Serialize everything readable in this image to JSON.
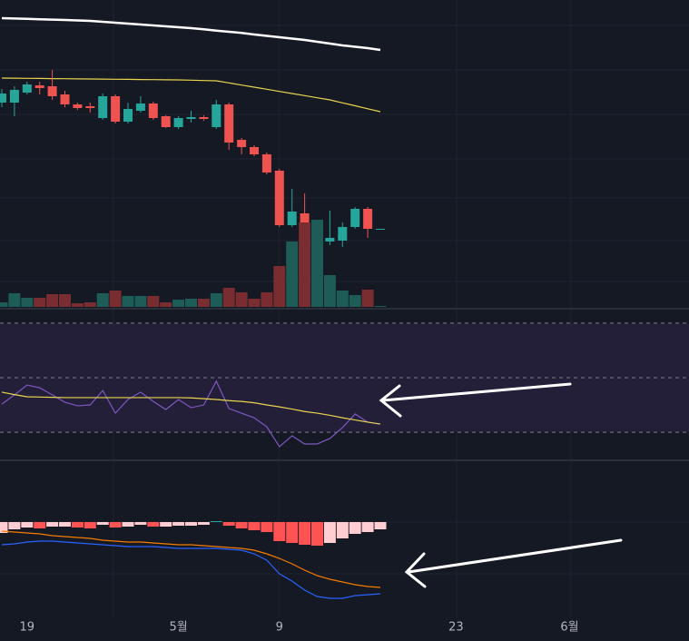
{
  "chart_data": [
    {
      "type": "candlestick",
      "open": [
        227,
        227,
        238,
        246,
        245,
        236,
        225,
        223,
        210,
        234,
        206,
        218,
        226,
        212,
        200,
        209,
        211,
        200,
        225,
        186,
        178,
        170,
        152,
        92,
        105,
        74,
        74,
        75,
        90,
        110,
        88
      ],
      "close": [
        237,
        241,
        247,
        243,
        234,
        225,
        221,
        221,
        234,
        206,
        220,
        226,
        210,
        200,
        210,
        211,
        209,
        225,
        183,
        178,
        170,
        150,
        92,
        107,
        75,
        78,
        78,
        90,
        110,
        88,
        88
      ],
      "high": [
        242,
        245,
        250,
        250,
        263,
        240,
        227,
        227,
        237,
        236,
        227,
        234,
        228,
        213,
        212,
        218,
        213,
        230,
        227,
        188,
        180,
        172,
        154,
        132,
        127,
        97,
        108,
        95,
        112,
        112,
        88
      ],
      "low": [
        222,
        212,
        236,
        236,
        230,
        222,
        219,
        216,
        208,
        204,
        204,
        216,
        208,
        199,
        198,
        205,
        207,
        198,
        175,
        170,
        168,
        148,
        90,
        90,
        55,
        68,
        70,
        68,
        88,
        78,
        88
      ],
      "up_color": "#26a69a",
      "down_color": "#ef5350",
      "series": [
        {
          "color": "#ffffff",
          "values": [
            320,
            319.6,
            319.2,
            318.8,
            318.4,
            318,
            317.5,
            317,
            316,
            315,
            314,
            313,
            312,
            311,
            310,
            309,
            307.7,
            306.3,
            305,
            303.7,
            302,
            300.5,
            299,
            297.5,
            296,
            294,
            292,
            290,
            288.5,
            287,
            285
          ]
        },
        {
          "color": "#e8d44d",
          "values": [
            254,
            253.9,
            253.7,
            253.6,
            253.4,
            253.3,
            253.1,
            253,
            252.9,
            252.7,
            252.6,
            252.4,
            252.3,
            252.1,
            252,
            251.7,
            251.3,
            251,
            248.7,
            246.3,
            244,
            241.7,
            239.3,
            237,
            234.7,
            232.3,
            230,
            226.7,
            223.5,
            220.2,
            217
          ]
        }
      ],
      "ylim": [
        0,
        340
      ]
    },
    {
      "type": "volume",
      "values": [
        5,
        15,
        10,
        10,
        14,
        14,
        4,
        5,
        15,
        18,
        12,
        12,
        12,
        5,
        8,
        9,
        9,
        15,
        21,
        16,
        9,
        16,
        45,
        72,
        93,
        96,
        35,
        18,
        13,
        19,
        1
      ],
      "up_color": "#1e5c58",
      "down_color": "#7a2d31",
      "ylim": [
        0,
        338
      ]
    },
    {
      "type": "line",
      "series": [
        {
          "color": "#7e57c2",
          "values": [
            40.3,
            43.7,
            47.3,
            46.3,
            43.7,
            41,
            39.7,
            40,
            45.3,
            37,
            42,
            44.7,
            41.3,
            38.3,
            42,
            39,
            40,
            48.7,
            38.7,
            37,
            35.3,
            32,
            24.7,
            28.7,
            25.7,
            25.7,
            27.7,
            31.7,
            36.7,
            33.7,
            33
          ]
        },
        {
          "color": "#e8d44d",
          "values": [
            44.7,
            43.8,
            43,
            42.9,
            42.8,
            42.7,
            42.7,
            42.7,
            42.7,
            42.7,
            42.7,
            42.7,
            42.7,
            42.7,
            42.7,
            42.6,
            42.3,
            42,
            41.6,
            41.3,
            40.8,
            40,
            39.3,
            38.5,
            37.6,
            37,
            36.2,
            35.3,
            34.5,
            33.7,
            33
          ]
        }
      ],
      "levels": [
        30,
        50,
        70
      ],
      "band_color": "#241f38",
      "ylim": [
        19.7,
        75.3
      ]
    },
    {
      "type": "macd",
      "histogram": [
        -12,
        -8,
        -6,
        -7,
        -5,
        -5,
        -6,
        -7,
        -3,
        -6,
        -5,
        -3,
        -5,
        -5,
        -4,
        -4,
        -3,
        1,
        -4,
        -7,
        -9,
        -11,
        -21,
        -23,
        -25,
        -26,
        -23,
        -18,
        -13,
        -11,
        -8
      ],
      "series": [
        {
          "color": "#2962ff",
          "values": [
            -25,
            -24,
            -22,
            -21,
            -21,
            -22,
            -23,
            -24,
            -25,
            -26,
            -27,
            -27,
            -27,
            -28,
            -29,
            -29,
            -29,
            -29,
            -30,
            -31,
            -35,
            -42,
            -57,
            -65,
            -75,
            -82,
            -84,
            -84,
            -81,
            -80,
            -79
          ]
        },
        {
          "color": "#f57c00",
          "values": [
            -10,
            -11,
            -12,
            -13,
            -15,
            -16,
            -17,
            -18,
            -20,
            -21,
            -22,
            -22,
            -23,
            -24,
            -25,
            -25,
            -26,
            -27,
            -28,
            -29,
            -31,
            -35,
            -40,
            -46,
            -53,
            -59,
            -63,
            -66,
            -69,
            -71,
            -72
          ]
        }
      ],
      "ylim": [
        -105,
        68
      ],
      "xticks": [
        {
          "value": 2,
          "label": "19"
        },
        {
          "value": 14,
          "label": "5월"
        },
        {
          "value": 22,
          "label": "9"
        },
        {
          "value": 36,
          "label": "23"
        },
        {
          "value": 45,
          "label": "6월"
        }
      ]
    }
  ]
}
